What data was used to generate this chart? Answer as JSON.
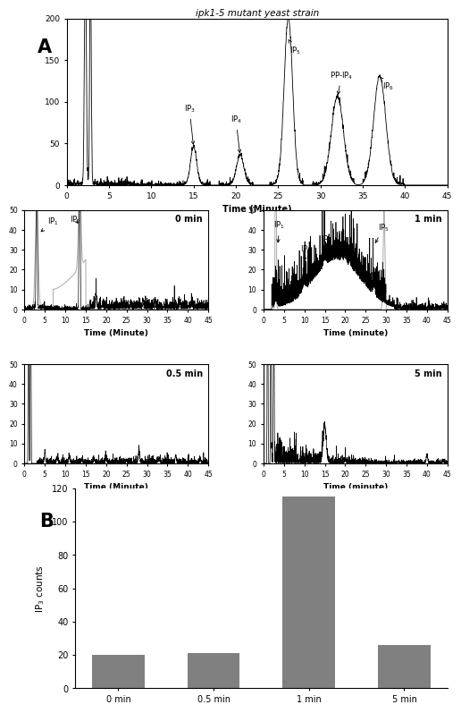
{
  "figure_bg": "#ffffff",
  "panel_A_label": "A",
  "panel_B_label": "B",
  "yeast_title": "ipk1-5 mutant yeast strain",
  "top_plot": {
    "ylim": [
      0,
      200
    ],
    "yticks": [
      0,
      50,
      100,
      150,
      200
    ],
    "xlim": [
      0,
      45
    ],
    "xticks": [
      0,
      5,
      10,
      15,
      20,
      25,
      30,
      35,
      40,
      45
    ],
    "xlabel": "Time (Minute)"
  },
  "subplots": [
    {
      "label": "0 min",
      "xlabel": "Time (Minute)",
      "ylim": [
        0,
        50
      ],
      "yticks": [
        0,
        10,
        20,
        30,
        40,
        50
      ],
      "xticks": [
        0,
        5,
        10,
        15,
        20,
        25,
        30,
        35,
        40,
        45
      ]
    },
    {
      "label": "1 min",
      "xlabel": "Time (minute)",
      "ylim": [
        0,
        50
      ],
      "yticks": [
        0,
        10,
        20,
        30,
        40,
        50
      ],
      "xticks": [
        0,
        5,
        10,
        15,
        20,
        25,
        30,
        35,
        40,
        45
      ]
    },
    {
      "label": "0.5 min",
      "xlabel": "Time (Minute)",
      "ylim": [
        0,
        50
      ],
      "yticks": [
        0,
        10,
        20,
        30,
        40,
        50
      ],
      "xticks": [
        0,
        5,
        10,
        15,
        20,
        25,
        30,
        35,
        40,
        45
      ]
    },
    {
      "label": "5 min",
      "xlabel": "Time (minute)",
      "ylim": [
        0,
        50
      ],
      "yticks": [
        0,
        10,
        20,
        30,
        40,
        50
      ],
      "xticks": [
        0,
        5,
        10,
        15,
        20,
        25,
        30,
        35,
        40,
        45
      ]
    }
  ],
  "bar_chart": {
    "categories": [
      "0 min",
      "0.5 min",
      "1 min",
      "5 min"
    ],
    "values": [
      20,
      21,
      115,
      26
    ],
    "bar_color": "#808080",
    "ylabel": "IP$_3$ counts",
    "ylim": [
      0,
      120
    ],
    "yticks": [
      0,
      20,
      40,
      60,
      80,
      100,
      120
    ]
  },
  "gray_line_color": "#aaaaaa",
  "line_color": "#000000"
}
